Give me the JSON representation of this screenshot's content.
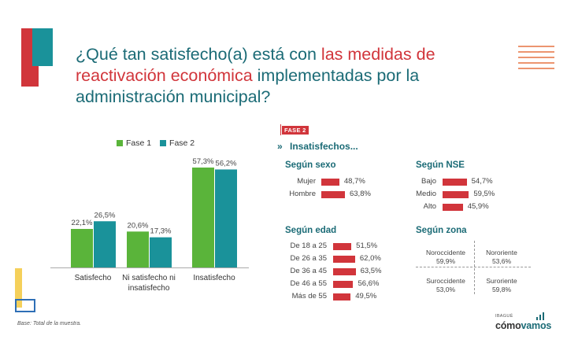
{
  "title": {
    "part1": "¿Qué tan satisfecho(a) está con ",
    "highlight": "las medidas de reactivación económica",
    "part2": " implementadas por la administración municipal?"
  },
  "colors": {
    "fase1": "#5ab43a",
    "fase2": "#1a929a",
    "accent": "#d1353b",
    "teal": "#1b6b76"
  },
  "chart_data": [
    {
      "type": "bar",
      "categories": [
        "Satisfecho",
        "Ni satisfecho ni insatisfecho",
        "Insatisfecho"
      ],
      "category_labels": [
        [
          "Satisfecho"
        ],
        [
          "Ni satisfecho ni",
          "insatisfecho"
        ],
        [
          "Insatisfecho"
        ]
      ],
      "series": [
        {
          "name": "Fase 1",
          "values": [
            22.1,
            20.6,
            57.3
          ],
          "labels": [
            "22,1%",
            "20,6%",
            "57,3%"
          ]
        },
        {
          "name": "Fase 2",
          "values": [
            26.5,
            17.3,
            56.2
          ],
          "labels": [
            "26,5%",
            "17,3%",
            "56,2%"
          ]
        }
      ],
      "ylim": [
        0,
        60
      ],
      "legend": "top"
    },
    {
      "type": "bar",
      "orientation": "horizontal",
      "title": "Según sexo",
      "categories": [
        "Mujer",
        "Hombre"
      ],
      "values": [
        48.7,
        63.8
      ],
      "labels": [
        "48,7%",
        "63,8%"
      ]
    },
    {
      "type": "bar",
      "orientation": "horizontal",
      "title": "Según NSE",
      "categories": [
        "Bajo",
        "Medio",
        "Alto"
      ],
      "values": [
        54.7,
        59.5,
        45.9
      ],
      "labels": [
        "54,7%",
        "59,5%",
        "45,9%"
      ]
    },
    {
      "type": "bar",
      "orientation": "horizontal",
      "title": "Según edad",
      "categories": [
        "De 18 a 25",
        "De 26 a 35",
        "De 36 a 45",
        "De 46 a 55",
        "Más de 55"
      ],
      "values": [
        51.5,
        62.0,
        63.5,
        56.6,
        49.5
      ],
      "labels": [
        "51,5%",
        "62,0%",
        "63,5%",
        "56,6%",
        "49,5%"
      ]
    },
    {
      "type": "table",
      "title": "Según zona",
      "zones": [
        {
          "name": "Noroccidente",
          "value": "59,9%"
        },
        {
          "name": "Nororiente",
          "value": "53,6%"
        },
        {
          "name": "Suroccidente",
          "value": "53,0%"
        },
        {
          "name": "Suroriente",
          "value": "59,8%"
        }
      ]
    }
  ],
  "phase_badge": "FASE 2",
  "insat_title": "Insatisfechos...",
  "insat_icon": "double-chevron-icon",
  "footnote": "Base: Total de la muestra.",
  "brand": {
    "small": "IBAGUÉ",
    "part1": "cómo",
    "part2": "vamos"
  }
}
